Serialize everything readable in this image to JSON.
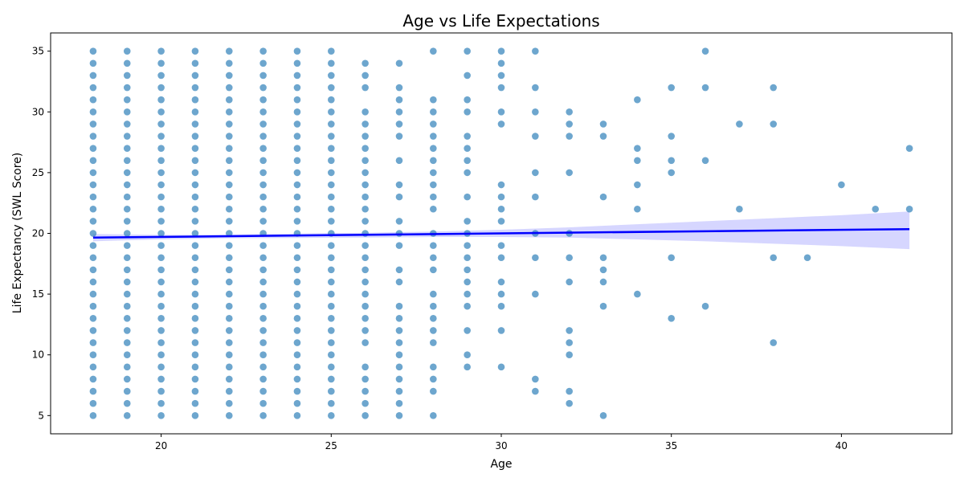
{
  "chart_data": {
    "type": "scatter",
    "title": "Age vs Life Expectations",
    "xlabel": "Age",
    "ylabel": "Life Expectancy (SWL Score)",
    "xlim": [
      16.75,
      43.25
    ],
    "ylim": [
      3.5,
      36.5
    ],
    "xticks": [
      20,
      25,
      30,
      35,
      40
    ],
    "yticks": [
      5,
      10,
      15,
      20,
      25,
      30,
      35
    ],
    "grid": false,
    "colors": {
      "points": "#1f77b4",
      "regression": "#0000ff",
      "ci_band": "#c8c8ff"
    },
    "dense_ages": [
      18,
      19,
      20,
      21,
      22,
      23,
      24,
      25
    ],
    "dense_score_range": [
      5,
      35
    ],
    "dense_exclusions": {
      "20": [],
      "22": [],
      "23": [],
      "24": []
    },
    "points": [
      [
        26,
        5
      ],
      [
        26,
        6
      ],
      [
        26,
        7
      ],
      [
        26,
        8
      ],
      [
        26,
        9
      ],
      [
        26,
        11
      ],
      [
        26,
        12
      ],
      [
        26,
        13
      ],
      [
        26,
        14
      ],
      [
        26,
        15
      ],
      [
        26,
        16
      ],
      [
        26,
        17
      ],
      [
        26,
        18
      ],
      [
        26,
        19
      ],
      [
        26,
        20
      ],
      [
        26,
        21
      ],
      [
        26,
        22
      ],
      [
        26,
        23
      ],
      [
        26,
        24
      ],
      [
        26,
        25
      ],
      [
        26,
        26
      ],
      [
        26,
        27
      ],
      [
        26,
        28
      ],
      [
        26,
        29
      ],
      [
        26,
        30
      ],
      [
        26,
        32
      ],
      [
        26,
        33
      ],
      [
        26,
        34
      ],
      [
        27,
        5
      ],
      [
        27,
        6
      ],
      [
        27,
        7
      ],
      [
        27,
        8
      ],
      [
        27,
        9
      ],
      [
        27,
        10
      ],
      [
        27,
        11
      ],
      [
        27,
        12
      ],
      [
        27,
        13
      ],
      [
        27,
        14
      ],
      [
        27,
        16
      ],
      [
        27,
        17
      ],
      [
        27,
        19
      ],
      [
        27,
        20
      ],
      [
        27,
        21
      ],
      [
        27,
        23
      ],
      [
        27,
        24
      ],
      [
        27,
        26
      ],
      [
        27,
        28
      ],
      [
        27,
        29
      ],
      [
        27,
        30
      ],
      [
        27,
        31
      ],
      [
        27,
        32
      ],
      [
        27,
        34
      ],
      [
        28,
        5
      ],
      [
        28,
        7
      ],
      [
        28,
        8
      ],
      [
        28,
        9
      ],
      [
        28,
        11
      ],
      [
        28,
        12
      ],
      [
        28,
        13
      ],
      [
        28,
        14
      ],
      [
        28,
        15
      ],
      [
        28,
        17
      ],
      [
        28,
        18
      ],
      [
        28,
        19
      ],
      [
        28,
        20
      ],
      [
        28,
        22
      ],
      [
        28,
        23
      ],
      [
        28,
        24
      ],
      [
        28,
        25
      ],
      [
        28,
        26
      ],
      [
        28,
        27
      ],
      [
        28,
        28
      ],
      [
        28,
        29
      ],
      [
        28,
        30
      ],
      [
        28,
        31
      ],
      [
        28,
        35
      ],
      [
        29,
        9
      ],
      [
        29,
        10
      ],
      [
        29,
        12
      ],
      [
        29,
        14
      ],
      [
        29,
        15
      ],
      [
        29,
        16
      ],
      [
        29,
        17
      ],
      [
        29,
        18
      ],
      [
        29,
        19
      ],
      [
        29,
        20
      ],
      [
        29,
        21
      ],
      [
        29,
        23
      ],
      [
        29,
        25
      ],
      [
        29,
        26
      ],
      [
        29,
        27
      ],
      [
        29,
        28
      ],
      [
        29,
        30
      ],
      [
        29,
        31
      ],
      [
        29,
        33
      ],
      [
        29,
        35
      ],
      [
        30,
        9
      ],
      [
        30,
        12
      ],
      [
        30,
        14
      ],
      [
        30,
        15
      ],
      [
        30,
        16
      ],
      [
        30,
        18
      ],
      [
        30,
        19
      ],
      [
        30,
        21
      ],
      [
        30,
        22
      ],
      [
        30,
        23
      ],
      [
        30,
        24
      ],
      [
        30,
        29
      ],
      [
        30,
        30
      ],
      [
        30,
        32
      ],
      [
        30,
        33
      ],
      [
        30,
        34
      ],
      [
        30,
        35
      ],
      [
        31,
        7
      ],
      [
        31,
        8
      ],
      [
        31,
        15
      ],
      [
        31,
        18
      ],
      [
        31,
        20
      ],
      [
        31,
        23
      ],
      [
        31,
        25
      ],
      [
        31,
        28
      ],
      [
        31,
        30
      ],
      [
        31,
        32
      ],
      [
        31,
        35
      ],
      [
        32,
        6
      ],
      [
        32,
        7
      ],
      [
        32,
        10
      ],
      [
        32,
        11
      ],
      [
        32,
        12
      ],
      [
        32,
        16
      ],
      [
        32,
        18
      ],
      [
        32,
        20
      ],
      [
        32,
        25
      ],
      [
        32,
        28
      ],
      [
        32,
        29
      ],
      [
        32,
        30
      ],
      [
        33,
        5
      ],
      [
        33,
        14
      ],
      [
        33,
        16
      ],
      [
        33,
        17
      ],
      [
        33,
        18
      ],
      [
        33,
        23
      ],
      [
        33,
        28
      ],
      [
        33,
        29
      ],
      [
        34,
        15
      ],
      [
        34,
        22
      ],
      [
        34,
        24
      ],
      [
        34,
        26
      ],
      [
        34,
        27
      ],
      [
        34,
        31
      ],
      [
        35,
        13
      ],
      [
        35,
        18
      ],
      [
        35,
        25
      ],
      [
        35,
        26
      ],
      [
        35,
        28
      ],
      [
        35,
        32
      ],
      [
        36,
        14
      ],
      [
        36,
        26
      ],
      [
        36,
        32
      ],
      [
        36,
        35
      ],
      [
        37,
        22
      ],
      [
        37,
        29
      ],
      [
        38,
        11
      ],
      [
        38,
        18
      ],
      [
        38,
        29
      ],
      [
        38,
        32
      ],
      [
        39,
        18
      ],
      [
        40,
        24
      ],
      [
        41,
        22
      ],
      [
        42,
        22
      ],
      [
        42,
        27
      ]
    ],
    "regression": {
      "x_range": [
        18,
        42
      ],
      "y_start": 19.65,
      "y_end": 20.35
    },
    "confidence_band": {
      "x": [
        18,
        20,
        22,
        24,
        26,
        28,
        30,
        32,
        34,
        36,
        38,
        40,
        42
      ],
      "upper": [
        19.95,
        19.88,
        19.9,
        19.98,
        20.05,
        20.15,
        20.3,
        20.5,
        20.75,
        21.0,
        21.25,
        21.5,
        21.8
      ],
      "lower": [
        19.35,
        19.5,
        19.6,
        19.62,
        19.65,
        19.7,
        19.7,
        19.65,
        19.5,
        19.35,
        19.15,
        18.95,
        18.7
      ]
    }
  }
}
